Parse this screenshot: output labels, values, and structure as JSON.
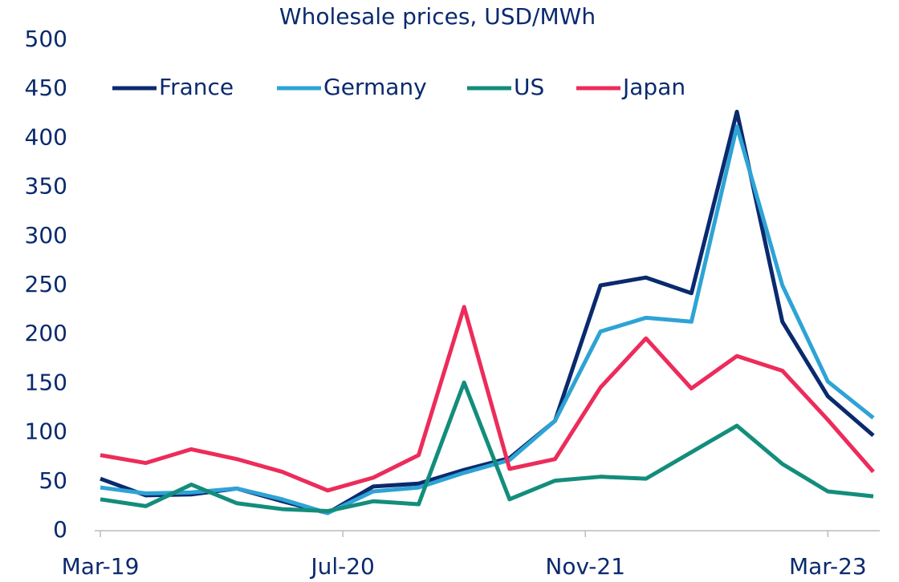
{
  "chart_data": {
    "type": "line",
    "title": "Wholesale prices, USD/MWh",
    "x": [
      "2019-03",
      "2019-06",
      "2019-09",
      "2019-12",
      "2020-03",
      "2020-06",
      "2020-09",
      "2020-12",
      "2021-03",
      "2021-06",
      "2021-09",
      "2021-12",
      "2022-03",
      "2022-06",
      "2022-09",
      "2022-12",
      "2023-03",
      "2023-06"
    ],
    "series": [
      {
        "name": "France",
        "color": "#0a2a6e",
        "values": [
          53,
          36,
          37,
          43,
          30,
          18,
          45,
          48,
          62,
          74,
          112,
          250,
          258,
          242,
          427,
          213,
          137,
          97
        ]
      },
      {
        "name": "Germany",
        "color": "#2ea3d5",
        "values": [
          44,
          38,
          39,
          43,
          32,
          18,
          40,
          44,
          59,
          72,
          112,
          203,
          217,
          213,
          412,
          250,
          152,
          115
        ]
      },
      {
        "name": "US",
        "color": "#138d7c",
        "values": [
          32,
          25,
          47,
          28,
          22,
          20,
          30,
          27,
          151,
          32,
          51,
          55,
          53,
          80,
          107,
          68,
          40,
          35
        ]
      },
      {
        "name": "Japan",
        "color": "#ec2c5a",
        "values": [
          77,
          69,
          83,
          73,
          60,
          41,
          54,
          77,
          228,
          63,
          73,
          146,
          196,
          145,
          178,
          163,
          113,
          60
        ]
      }
    ],
    "xlim": [
      "2019-03",
      "2023-06"
    ],
    "xticks": [
      {
        "value": "2019-03",
        "label": "Mar-19"
      },
      {
        "value": "2020-07",
        "label": "Jul-20"
      },
      {
        "value": "2021-11",
        "label": "Nov-21"
      },
      {
        "value": "2023-03",
        "label": "Mar-23"
      }
    ],
    "ylim": [
      0,
      500
    ],
    "yticks": [
      0,
      50,
      100,
      150,
      200,
      250,
      300,
      350,
      400,
      450,
      500
    ],
    "legend": "top"
  }
}
